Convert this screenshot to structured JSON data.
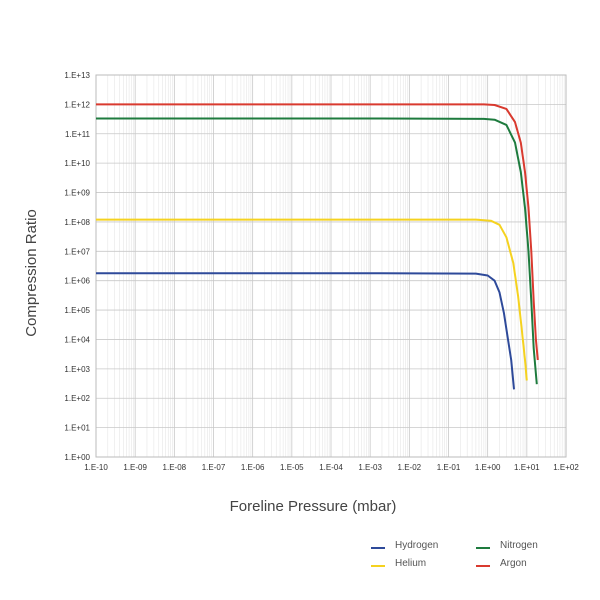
{
  "chart_data": {
    "type": "line",
    "xlabel": "Foreline Pressure (mbar)",
    "ylabel": "Compression Ratio",
    "xscale": "log",
    "yscale": "log",
    "xlim_exp": [
      -10,
      2
    ],
    "ylim_exp": [
      0,
      13
    ],
    "x_ticks": [
      "1.E-10",
      "1.E-09",
      "1.E-08",
      "1.E-07",
      "1.E-06",
      "1.E-05",
      "1.E-04",
      "1.E-03",
      "1.E-02",
      "1.E-01",
      "1.E+00",
      "1.E+01",
      "1.E+02"
    ],
    "y_ticks": [
      "1.E+00",
      "1.E+01",
      "1.E+02",
      "1.E+03",
      "1.E+04",
      "1.E+05",
      "1.E+06",
      "1.E+07",
      "1.E+08",
      "1.E+09",
      "1.E+10",
      "1.E+11",
      "1.E+12",
      "1.E+13"
    ],
    "grid": true,
    "legend_position": "bottom-right",
    "series": [
      {
        "name": "Hydrogen",
        "color": "#2e4a9a",
        "points": [
          [
            1e-10,
            1800000.0
          ],
          [
            0.001,
            1800000.0
          ],
          [
            0.5,
            1750000.0
          ],
          [
            1.0,
            1500000.0
          ],
          [
            1.5,
            1000000.0
          ],
          [
            2.0,
            400000.0
          ],
          [
            2.6,
            80000.0
          ],
          [
            3.3,
            10000.0
          ],
          [
            4.0,
            2000.0
          ],
          [
            4.7,
            200.0
          ]
        ]
      },
      {
        "name": "Helium",
        "color": "#f5d21f",
        "points": [
          [
            1e-10,
            120000000.0
          ],
          [
            0.001,
            120000000.0
          ],
          [
            0.5,
            120000000.0
          ],
          [
            1.2,
            110000000.0
          ],
          [
            2.0,
            80000000.0
          ],
          [
            3.0,
            30000000.0
          ],
          [
            4.5,
            4000000.0
          ],
          [
            6.0,
            300000.0
          ],
          [
            7.5,
            20000.0
          ],
          [
            9.0,
            2000.0
          ],
          [
            10.0,
            400.0
          ]
        ]
      },
      {
        "name": "Nitrogen",
        "color": "#1e7b3e",
        "points": [
          [
            1e-10,
            330000000000.0
          ],
          [
            0.001,
            330000000000.0
          ],
          [
            0.8,
            320000000000.0
          ],
          [
            1.5,
            300000000000.0
          ],
          [
            3.0,
            200000000000.0
          ],
          [
            5.0,
            50000000000.0
          ],
          [
            7.0,
            5000000000.0
          ],
          [
            9.0,
            300000000.0
          ],
          [
            11.0,
            10000000.0
          ],
          [
            13.0,
            200000.0
          ],
          [
            15.0,
            5000.0
          ],
          [
            18.0,
            300.0
          ]
        ]
      },
      {
        "name": "Argon",
        "color": "#d93a2f",
        "points": [
          [
            1e-10,
            1000000000000.0
          ],
          [
            0.001,
            1000000000000.0
          ],
          [
            0.8,
            1000000000000.0
          ],
          [
            1.5,
            950000000000.0
          ],
          [
            3.0,
            700000000000.0
          ],
          [
            5.0,
            250000000000.0
          ],
          [
            7.0,
            50000000000.0
          ],
          [
            9.0,
            5000000000.0
          ],
          [
            11.0,
            300000000.0
          ],
          [
            13.0,
            10000000.0
          ],
          [
            15.0,
            200000.0
          ],
          [
            17.0,
            10000.0
          ],
          [
            19.0,
            2000.0
          ]
        ]
      }
    ]
  }
}
